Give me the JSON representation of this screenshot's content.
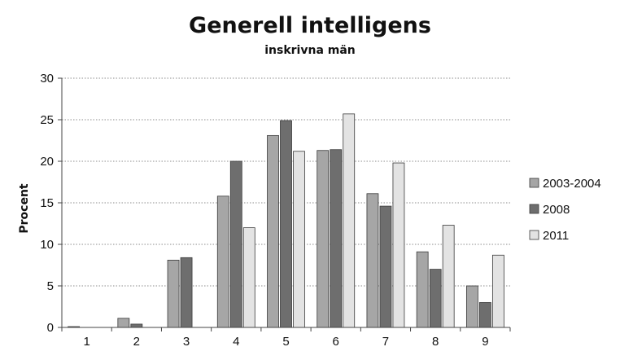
{
  "chart_data": {
    "type": "bar",
    "title": "Generell intelligens",
    "subtitle": "inskrivna män",
    "xlabel": "",
    "ylabel": "Procent",
    "ylim": [
      0,
      30
    ],
    "yticks": [
      0,
      5,
      10,
      15,
      20,
      25,
      30
    ],
    "categories": [
      "1",
      "2",
      "3",
      "4",
      "5",
      "6",
      "7",
      "8",
      "9"
    ],
    "grid": true,
    "legend_position": "right",
    "series": [
      {
        "name": "2003-2004",
        "color": "#a6a6a6",
        "values": [
          0.1,
          1.1,
          8.1,
          15.8,
          23.1,
          21.3,
          16.1,
          9.1,
          5.0
        ]
      },
      {
        "name": "2008",
        "color": "#6e6e6e",
        "values": [
          0.0,
          0.4,
          8.4,
          20.0,
          24.9,
          21.4,
          14.6,
          7.0,
          3.0
        ]
      },
      {
        "name": "2011",
        "color": "#e3e3e3",
        "values": [
          0.0,
          0.0,
          0.0,
          12.0,
          21.2,
          25.7,
          19.8,
          12.3,
          8.7
        ]
      }
    ]
  }
}
